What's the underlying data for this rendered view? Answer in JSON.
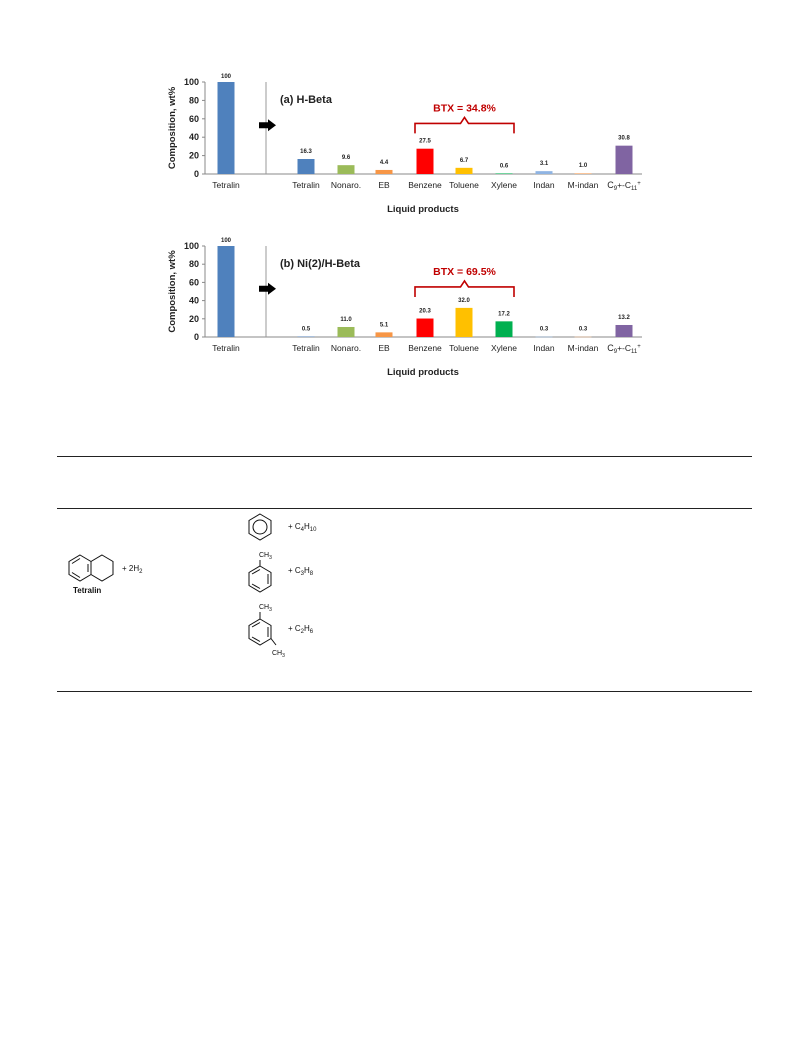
{
  "chart_data": [
    {
      "type": "bar",
      "title": "(a) H-Beta",
      "feed": {
        "category": "Tetralin",
        "value": 100
      },
      "categories": [
        "Tetralin",
        "Nonaro.",
        "EB",
        "Benzene",
        "Toluene",
        "Xylene",
        "Indan",
        "M-indan",
        "C9+-C11+"
      ],
      "values": [
        16.3,
        9.6,
        4.4,
        27.5,
        6.7,
        0.6,
        3.1,
        1.0,
        30.8
      ],
      "value_labels": [
        "16.3",
        "9.6",
        "4.4",
        "27.5",
        "6.7",
        "0.6",
        "3.1",
        "1.0",
        "30.8"
      ],
      "feed_label": "100",
      "colors": [
        "#4f81bd",
        "#9bbb59",
        "#f79646",
        "#ff0000",
        "#ffc000",
        "#00b050",
        "#8fb4e3",
        "#fabf8f",
        "#8064a2"
      ],
      "feed_color": "#4f81bd",
      "annotation": "BTX = 34.8%",
      "annotation_color": "#c00000",
      "xlabel": "Liquid products",
      "ylabel": "Composition,  wt%",
      "ylim": [
        0,
        100
      ],
      "yticks": [
        "0",
        "20",
        "40",
        "60",
        "80",
        "100"
      ],
      "grid": false
    },
    {
      "type": "bar",
      "title": "(b) Ni(2)/H-Beta",
      "feed": {
        "category": "Tetralin",
        "value": 100
      },
      "categories": [
        "Tetralin",
        "Nonaro.",
        "EB",
        "Benzene",
        "Toluene",
        "Xylene",
        "Indan",
        "M-indan",
        "C9+-C11+"
      ],
      "values": [
        0.5,
        11.0,
        5.1,
        20.3,
        32.0,
        17.2,
        0.3,
        0.3,
        13.2
      ],
      "value_labels": [
        "0.5",
        "11.0",
        "5.1",
        "20.3",
        "32.0",
        "17.2",
        "0.3",
        "0.3",
        "13.2"
      ],
      "feed_label": "100",
      "colors": [
        "#4f81bd",
        "#9bbb59",
        "#f79646",
        "#ff0000",
        "#ffc000",
        "#00b050",
        "#8fb4e3",
        "#fabf8f",
        "#8064a2"
      ],
      "feed_color": "#4f81bd",
      "annotation": "BTX = 69.5%",
      "annotation_color": "#c00000",
      "xlabel": "Liquid products",
      "ylabel": "Composition,  wt%",
      "ylim": [
        0,
        100
      ],
      "yticks": [
        "0",
        "20",
        "40",
        "60",
        "80",
        "100"
      ],
      "grid": false
    }
  ],
  "scheme": {
    "reactant_label": "Tetralin",
    "reactant_coproduct": "+ 2H2",
    "products": [
      {
        "structure": "benzene-structure",
        "coproduct": "+  C4H10"
      },
      {
        "structure": "toluene-structure",
        "methyl_label": "CH3",
        "coproduct": "+  C3H8"
      },
      {
        "structure": "xylene-structure",
        "methyl_label_1": "CH3",
        "methyl_label_2": "CH3",
        "coproduct": "+  C2H6"
      }
    ]
  }
}
